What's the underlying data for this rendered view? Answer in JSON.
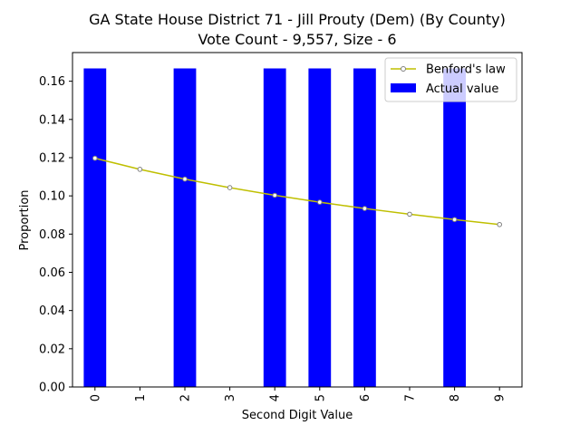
{
  "chart_data": {
    "type": "bar",
    "title_line1": "GA State House District 71 - Jill  Prouty (Dem) (By County)",
    "title_line2": "Vote Count - 9,557, Size - 6",
    "xlabel": "Second Digit Value",
    "ylabel": "Proportion",
    "categories": [
      "0",
      "1",
      "2",
      "3",
      "4",
      "5",
      "6",
      "7",
      "8",
      "9"
    ],
    "ylim": [
      0,
      0.175
    ],
    "yticks": [
      "0.00",
      "0.02",
      "0.04",
      "0.06",
      "0.08",
      "0.10",
      "0.12",
      "0.14",
      "0.16"
    ],
    "grid": false,
    "legend_position": "top-right",
    "series": [
      {
        "name": "Actual value",
        "kind": "bar",
        "color": "#0000ff",
        "values": [
          0.1667,
          0,
          0.1667,
          0,
          0.1667,
          0.1667,
          0.1667,
          0,
          0.1667,
          0
        ]
      },
      {
        "name": "Benford's law",
        "kind": "line",
        "color": "#bfbf00",
        "marker_color": "#808080",
        "values": [
          0.1197,
          0.1139,
          0.1088,
          0.1043,
          0.1003,
          0.0967,
          0.0934,
          0.0904,
          0.0876,
          0.085
        ]
      }
    ]
  }
}
